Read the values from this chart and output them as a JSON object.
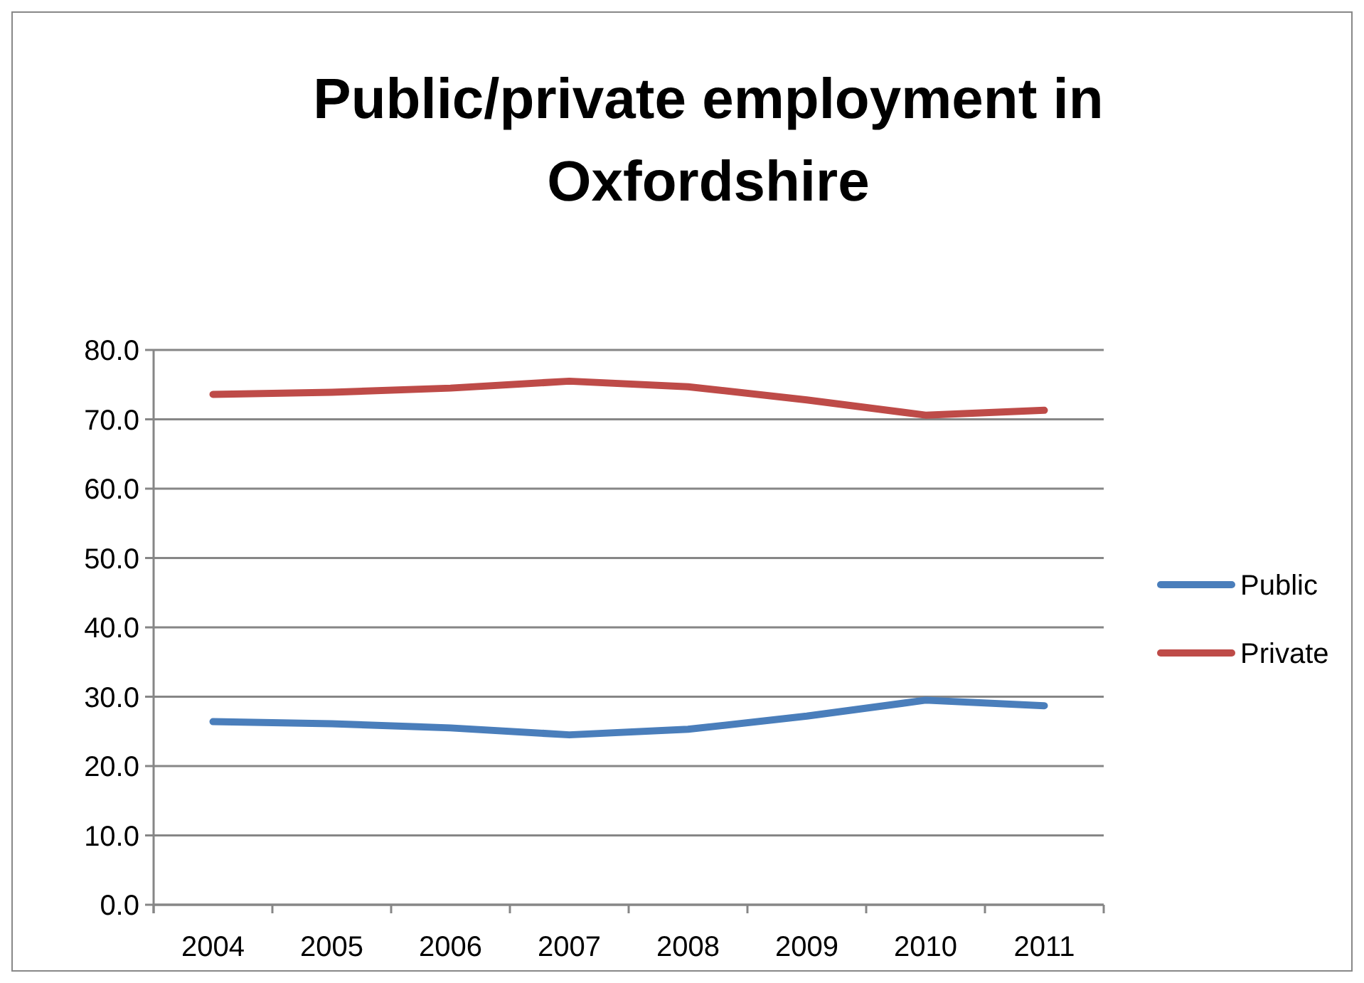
{
  "chart_data": {
    "type": "line",
    "title": "Public/private employment in Oxfordshire",
    "categories": [
      "2004",
      "2005",
      "2006",
      "2007",
      "2008",
      "2009",
      "2010",
      "2011"
    ],
    "series": [
      {
        "name": "Public",
        "color": "#4a7ebb",
        "values": [
          26.4,
          26.1,
          25.5,
          24.5,
          25.3,
          27.2,
          29.5,
          28.7
        ]
      },
      {
        "name": "Private",
        "color": "#be4b48",
        "values": [
          73.6,
          73.9,
          74.5,
          75.5,
          74.7,
          72.8,
          70.6,
          71.3
        ]
      }
    ],
    "ylim": [
      0,
      80
    ],
    "yticks": [
      {
        "value": 0,
        "label": "0.0"
      },
      {
        "value": 10,
        "label": "10.0"
      },
      {
        "value": 20,
        "label": "20.0"
      },
      {
        "value": 30,
        "label": "30.0"
      },
      {
        "value": 40,
        "label": "40.0"
      },
      {
        "value": 50,
        "label": "50.0"
      },
      {
        "value": 60,
        "label": "60.0"
      },
      {
        "value": 70,
        "label": "70.0"
      },
      {
        "value": 80,
        "label": "80.0"
      }
    ],
    "grid": "y",
    "legend": "right",
    "marker": "none",
    "line_style": "solid"
  }
}
